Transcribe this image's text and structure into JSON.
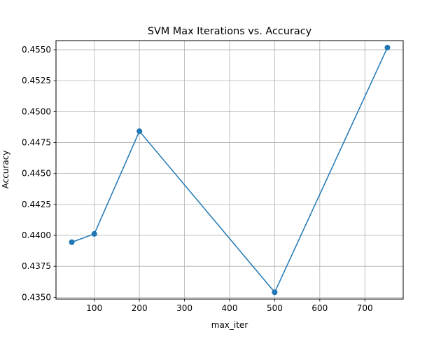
{
  "chart_data": {
    "type": "line",
    "title": "SVM Max Iterations vs. Accuracy",
    "xlabel": "max_iter",
    "ylabel": "Accuracy",
    "x": [
      50,
      100,
      200,
      500,
      750
    ],
    "series": [
      {
        "values": [
          0.43945,
          0.44012,
          0.44842,
          0.4354,
          0.45518
        ],
        "color": "#1f77b4",
        "marker": "circle"
      }
    ],
    "xlim": [
      15,
      785
    ],
    "ylim": [
      0.43485,
      0.45574
    ],
    "xticks": [
      100,
      200,
      300,
      400,
      500,
      600,
      700
    ],
    "xtick_labels": [
      "100",
      "200",
      "300",
      "400",
      "500",
      "600",
      "700"
    ],
    "yticks": [
      0.435,
      0.4375,
      0.44,
      0.4425,
      0.445,
      0.4475,
      0.45,
      0.4525,
      0.455
    ],
    "ytick_labels": [
      "0.4350",
      "0.4375",
      "0.4400",
      "0.4425",
      "0.4450",
      "0.4475",
      "0.4500",
      "0.4525",
      "0.4550"
    ],
    "grid": true,
    "legend": "none"
  }
}
